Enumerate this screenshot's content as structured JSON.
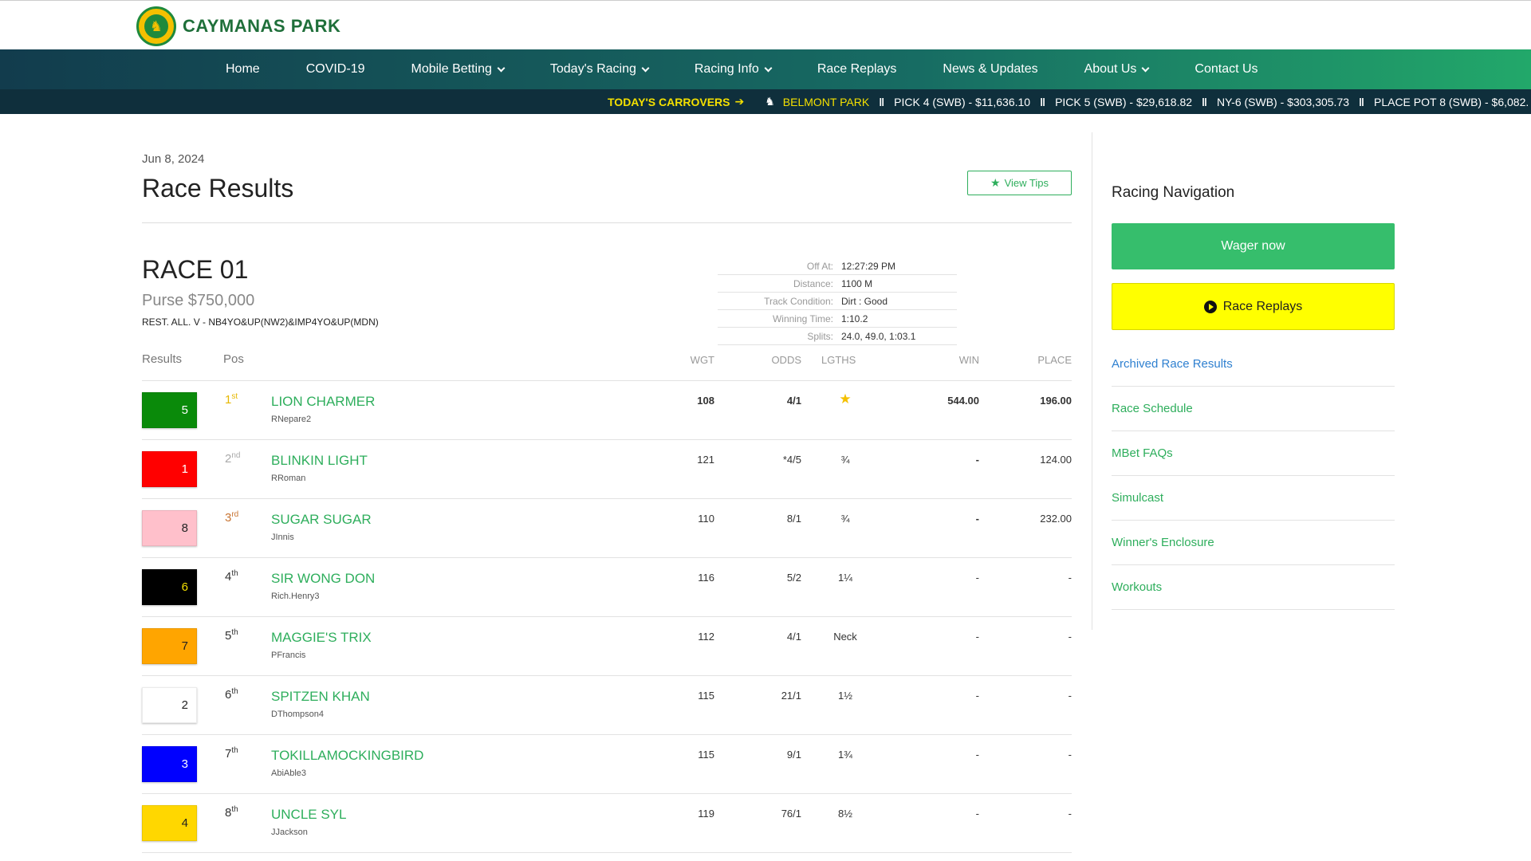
{
  "brand": {
    "name": "CAYMANAS PARK",
    "logo_glyph": "♞",
    "colors": {
      "green": "#1f8a3c",
      "gold": "#f4c000"
    }
  },
  "nav": {
    "items": [
      {
        "label": "Home",
        "dropdown": false
      },
      {
        "label": "COVID-19",
        "dropdown": false
      },
      {
        "label": "Mobile Betting",
        "dropdown": true
      },
      {
        "label": "Today's Racing",
        "dropdown": true
      },
      {
        "label": "Racing Info",
        "dropdown": true
      },
      {
        "label": "Race Replays",
        "dropdown": false
      },
      {
        "label": "News & Updates",
        "dropdown": false
      },
      {
        "label": "About Us",
        "dropdown": true
      },
      {
        "label": "Contact Us",
        "dropdown": false
      }
    ]
  },
  "ticker": {
    "label": "TODAY'S CARROVERS",
    "arrow": "➔",
    "track": "BELMONT PARK",
    "separator": "‖",
    "items": [
      "PICK 4 (SWB) - $11,636.10",
      "PICK 5 (SWB) - $29,618.82",
      "NY-6 (SWB) - $303,305.73",
      "PLACE POT 8 (SWB) - $6,082."
    ]
  },
  "page": {
    "date": "Jun 8, 2024",
    "title": "Race Results",
    "view_tips": "View Tips"
  },
  "race": {
    "title": "RACE 01",
    "purse": "Purse $750,000",
    "conditions": "REST. ALL. V - NB4YO&UP(NW2)&IMP4YO&UP(MDN)",
    "info": [
      {
        "k": "Off At:",
        "v": "12:27:29 PM"
      },
      {
        "k": "Distance:",
        "v": "1100 M"
      },
      {
        "k": "Track Condition:",
        "v": "Dirt : Good"
      },
      {
        "k": "Winning Time:",
        "v": "1:10.2"
      },
      {
        "k": "Splits:",
        "v": "24.0, 49.0, 1:03.1"
      }
    ]
  },
  "table": {
    "headers": {
      "results": "Results",
      "pos": "Pos",
      "wgt": "WGT",
      "odds": "ODDS",
      "lgths": "LGTHS",
      "win": "WIN",
      "place": "PLACE"
    },
    "rows": [
      {
        "num": "5",
        "bg": "#0a8a0a",
        "fg": "#ffffff",
        "pos": "1",
        "suffix": "st",
        "pos_color": "#e6b800",
        "horse": "LION CHARMER",
        "jockey": "RNepare2",
        "wgt": "108",
        "odds": "4/1",
        "lgths": "★",
        "win": "544.00",
        "place": "196.00",
        "bold": true
      },
      {
        "num": "1",
        "bg": "#ff0000",
        "fg": "#ffffff",
        "pos": "2",
        "suffix": "nd",
        "pos_color": "#aaaaaa",
        "horse": "BLINKIN LIGHT",
        "jockey": "RRoman",
        "wgt": "121",
        "odds": "*4/5",
        "lgths": "¾",
        "win": "-",
        "place": "124.00",
        "bold": false
      },
      {
        "num": "8",
        "bg": "#ffc0cb",
        "fg": "#222222",
        "pos": "3",
        "suffix": "rd",
        "pos_color": "#c87533",
        "horse": "SUGAR SUGAR",
        "jockey": "JInnis",
        "wgt": "110",
        "odds": "8/1",
        "lgths": "¾",
        "win": "-",
        "place": "232.00",
        "bold": false
      },
      {
        "num": "6",
        "bg": "#000000",
        "fg": "#f4e000",
        "pos": "4",
        "suffix": "th",
        "pos_color": "#333333",
        "horse": "SIR WONG DON",
        "jockey": "Rich.Henry3",
        "wgt": "116",
        "odds": "5/2",
        "lgths": "1¼",
        "win": "-",
        "place": "-",
        "bold": false
      },
      {
        "num": "7",
        "bg": "#ffa500",
        "fg": "#222222",
        "pos": "5",
        "suffix": "th",
        "pos_color": "#333333",
        "horse": "MAGGIE'S TRIX",
        "jockey": "PFrancis",
        "wgt": "112",
        "odds": "4/1",
        "lgths": "Neck",
        "win": "-",
        "place": "-",
        "bold": false
      },
      {
        "num": "2",
        "bg": "#ffffff",
        "fg": "#222222",
        "pos": "6",
        "suffix": "th",
        "pos_color": "#333333",
        "horse": "SPITZEN KHAN",
        "jockey": "DThompson4",
        "wgt": "115",
        "odds": "21/1",
        "lgths": "1½",
        "win": "-",
        "place": "-",
        "bold": false
      },
      {
        "num": "3",
        "bg": "#0000ff",
        "fg": "#ffffff",
        "pos": "7",
        "suffix": "th",
        "pos_color": "#333333",
        "horse": "TOKILLAMOCKINGBIRD",
        "jockey": "AbiAble3",
        "wgt": "115",
        "odds": "9/1",
        "lgths": "1¾",
        "win": "-",
        "place": "-",
        "bold": false
      },
      {
        "num": "4",
        "bg": "#ffd700",
        "fg": "#222222",
        "pos": "8",
        "suffix": "th",
        "pos_color": "#333333",
        "horse": "UNCLE SYL",
        "jockey": "JJackson",
        "wgt": "119",
        "odds": "76/1",
        "lgths": "8½",
        "win": "-",
        "place": "-",
        "bold": false
      }
    ]
  },
  "sidebar": {
    "title": "Racing Navigation",
    "wager": "Wager now",
    "replays": "Race Replays",
    "links": [
      {
        "label": "Archived Race Results",
        "color": "blue"
      },
      {
        "label": "Race Schedule",
        "color": "green"
      },
      {
        "label": "MBet FAQs",
        "color": "green"
      },
      {
        "label": "Simulcast",
        "color": "green"
      },
      {
        "label": "Winner's Enclosure",
        "color": "green"
      },
      {
        "label": "Workouts",
        "color": "green"
      }
    ]
  }
}
